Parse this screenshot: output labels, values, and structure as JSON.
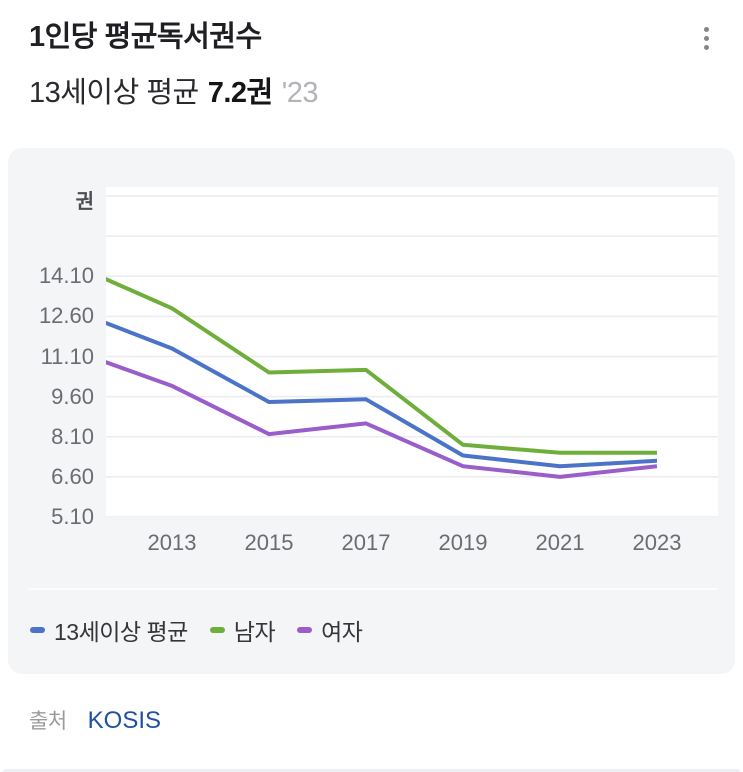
{
  "header": {
    "title": "1인당 평균독서권수",
    "subtitle_prefix": "13세이상 평균",
    "subtitle_value": "7.2권",
    "subtitle_year": "'23"
  },
  "footer": {
    "source_label": "출처",
    "source_name": "KOSIS"
  },
  "colors": {
    "card_bg": "#f4f5f7",
    "plot_bg": "#ffffff",
    "gridline": "#ececf0",
    "axis_text": "#6b6b73",
    "title_text": "#1f1f23",
    "muted_year_text": "#b3b3b8",
    "source_link_blue": "#2050a0",
    "series_average_blue": "#4b73c8",
    "series_male_green": "#6fae3a",
    "series_female_purple": "#9a5ecb"
  },
  "chart_data": {
    "type": "line",
    "title": "1인당 평균독서권수",
    "ylabel": "권",
    "x": [
      2011,
      2013,
      2015,
      2017,
      2019,
      2021,
      2023
    ],
    "x_ticks": [
      {
        "label": "2013",
        "value": 2013
      },
      {
        "label": "2015",
        "value": 2015
      },
      {
        "label": "2017",
        "value": 2017
      },
      {
        "label": "2019",
        "value": 2019
      },
      {
        "label": "2021",
        "value": 2021
      },
      {
        "label": "2023",
        "value": 2023
      }
    ],
    "y_ticks": [
      {
        "label": "14.10",
        "value": 14.1
      },
      {
        "label": "12.60",
        "value": 12.6
      },
      {
        "label": "11.10",
        "value": 11.1
      },
      {
        "label": "9.60",
        "value": 9.6
      },
      {
        "label": "8.10",
        "value": 8.1
      },
      {
        "label": "6.60",
        "value": 6.6
      },
      {
        "label": "5.10",
        "value": 5.1
      }
    ],
    "gridline_values": [
      17.1,
      15.6,
      14.1,
      12.6,
      11.1,
      9.6,
      8.1,
      6.6,
      5.1
    ],
    "ylim_visible": [
      5.1,
      17.43
    ],
    "xlim_visible": [
      2011.64,
      2024.26
    ],
    "x_axis_start_clipped": true,
    "grid": "horizontal-only",
    "legend_position": "bottom-left",
    "series": [
      {
        "key": "average",
        "name": "13세이상 평균",
        "color": "#4b73c8",
        "values": [
          12.8,
          11.4,
          9.4,
          9.5,
          7.4,
          7.0,
          7.2
        ]
      },
      {
        "key": "male",
        "name": "남자",
        "color": "#6fae3a",
        "values": [
          14.5,
          12.9,
          10.5,
          10.6,
          7.8,
          7.5,
          7.5
        ]
      },
      {
        "key": "female",
        "name": "여자",
        "color": "#9a5ecb",
        "values": [
          11.3,
          10.0,
          8.2,
          8.6,
          7.0,
          6.6,
          7.0
        ]
      }
    ]
  }
}
